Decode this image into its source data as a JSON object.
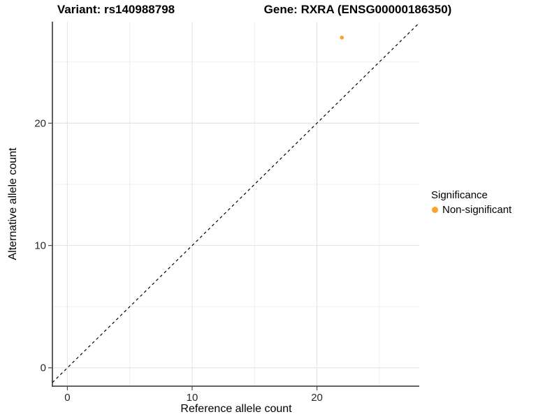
{
  "titles": {
    "variant": "Variant: rs140988798",
    "gene": "Gene: RXRA (ENSG00000186350)"
  },
  "legend": {
    "title": "Significance",
    "items": [
      {
        "label": "Non-significant",
        "color": "#F9A32C"
      }
    ]
  },
  "chart_data": {
    "type": "scatter",
    "title_left": "Variant: rs140988798",
    "title_right": "Gene: RXRA (ENSG00000186350)",
    "xlabel": "Reference allele count",
    "ylabel": "Alternative allele count",
    "xlim": [
      -1.2,
      28.2
    ],
    "ylim": [
      -1.5,
      28.3
    ],
    "x_ticks": [
      0,
      10,
      20
    ],
    "y_ticks": [
      0,
      10,
      20
    ],
    "minor_gridlines": [
      5,
      15,
      25
    ],
    "grid": true,
    "colors": {
      "major_grid": "#E5E5E5",
      "minor_grid": "#EFEFEF",
      "axis_line": "#4D4D4D",
      "tick_text": "#262626",
      "reference_line": "#000000",
      "point": "#F9A32C"
    },
    "reference_line": {
      "type": "abline",
      "slope": 1,
      "intercept": 0,
      "style": "dashed",
      "color": "#000000"
    },
    "series": [
      {
        "name": "Non-significant",
        "color": "#F9A32C",
        "points": [
          {
            "x": 22,
            "y": 27
          }
        ]
      }
    ],
    "legend": {
      "title": "Significance",
      "position": "right"
    }
  }
}
